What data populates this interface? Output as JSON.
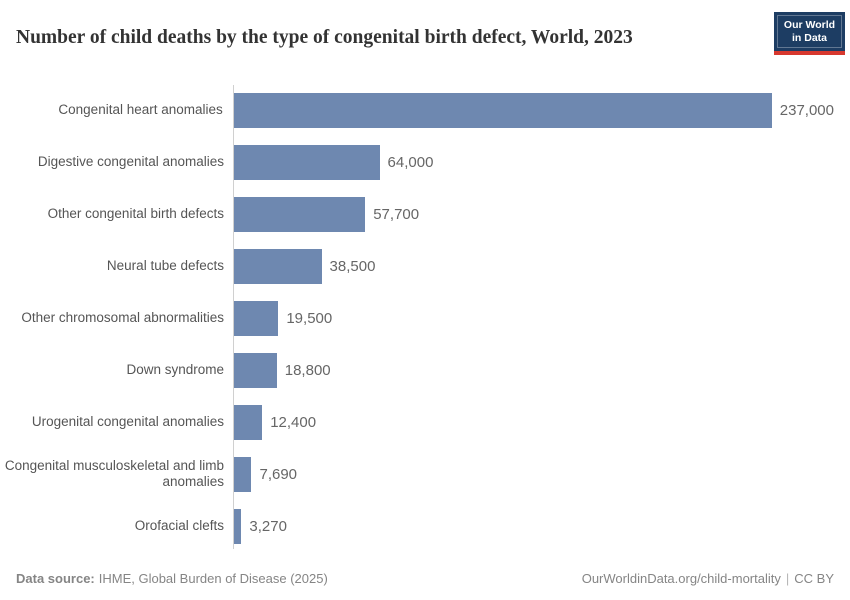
{
  "header": {
    "title": "Number of child deaths by the type of congenital birth defect, World, 2023",
    "logo": {
      "line1": "Our World",
      "line2": "in Data",
      "background_color": "#1d3d63",
      "accent_color": "#d7382e"
    }
  },
  "chart_data": {
    "type": "bar",
    "orientation": "horizontal",
    "title": "Number of child deaths by the type of congenital birth defect, World, 2023",
    "categories": [
      "Congenital heart anomalies",
      "Digestive congenital anomalies",
      "Other congenital birth defects",
      "Neural tube defects",
      "Other chromosomal abnormalities",
      "Down syndrome",
      "Urogenital congenital anomalies",
      "Congenital musculoskeletal and limb anomalies",
      "Orofacial clefts"
    ],
    "values": [
      237000,
      64000,
      57700,
      38500,
      19500,
      18800,
      12400,
      7690,
      3270
    ],
    "value_labels": [
      "237,000",
      "64,000",
      "57,700",
      "38,500",
      "19,500",
      "18,800",
      "12,400",
      "7,690",
      "3,270"
    ],
    "xlabel": "",
    "ylabel": "",
    "xlim": [
      0,
      237000
    ],
    "grid": false,
    "legend": "none",
    "bar_color": "#6e88b0",
    "axis_color": "#d0d0d0",
    "category_label_color": "#555555",
    "value_label_color": "#666666"
  },
  "footer": {
    "data_source_label": "Data source:",
    "data_source_value": "IHME, Global Burden of Disease (2025)",
    "link": "OurWorldinData.org/child-mortality",
    "separator": "|",
    "license": "CC BY"
  }
}
